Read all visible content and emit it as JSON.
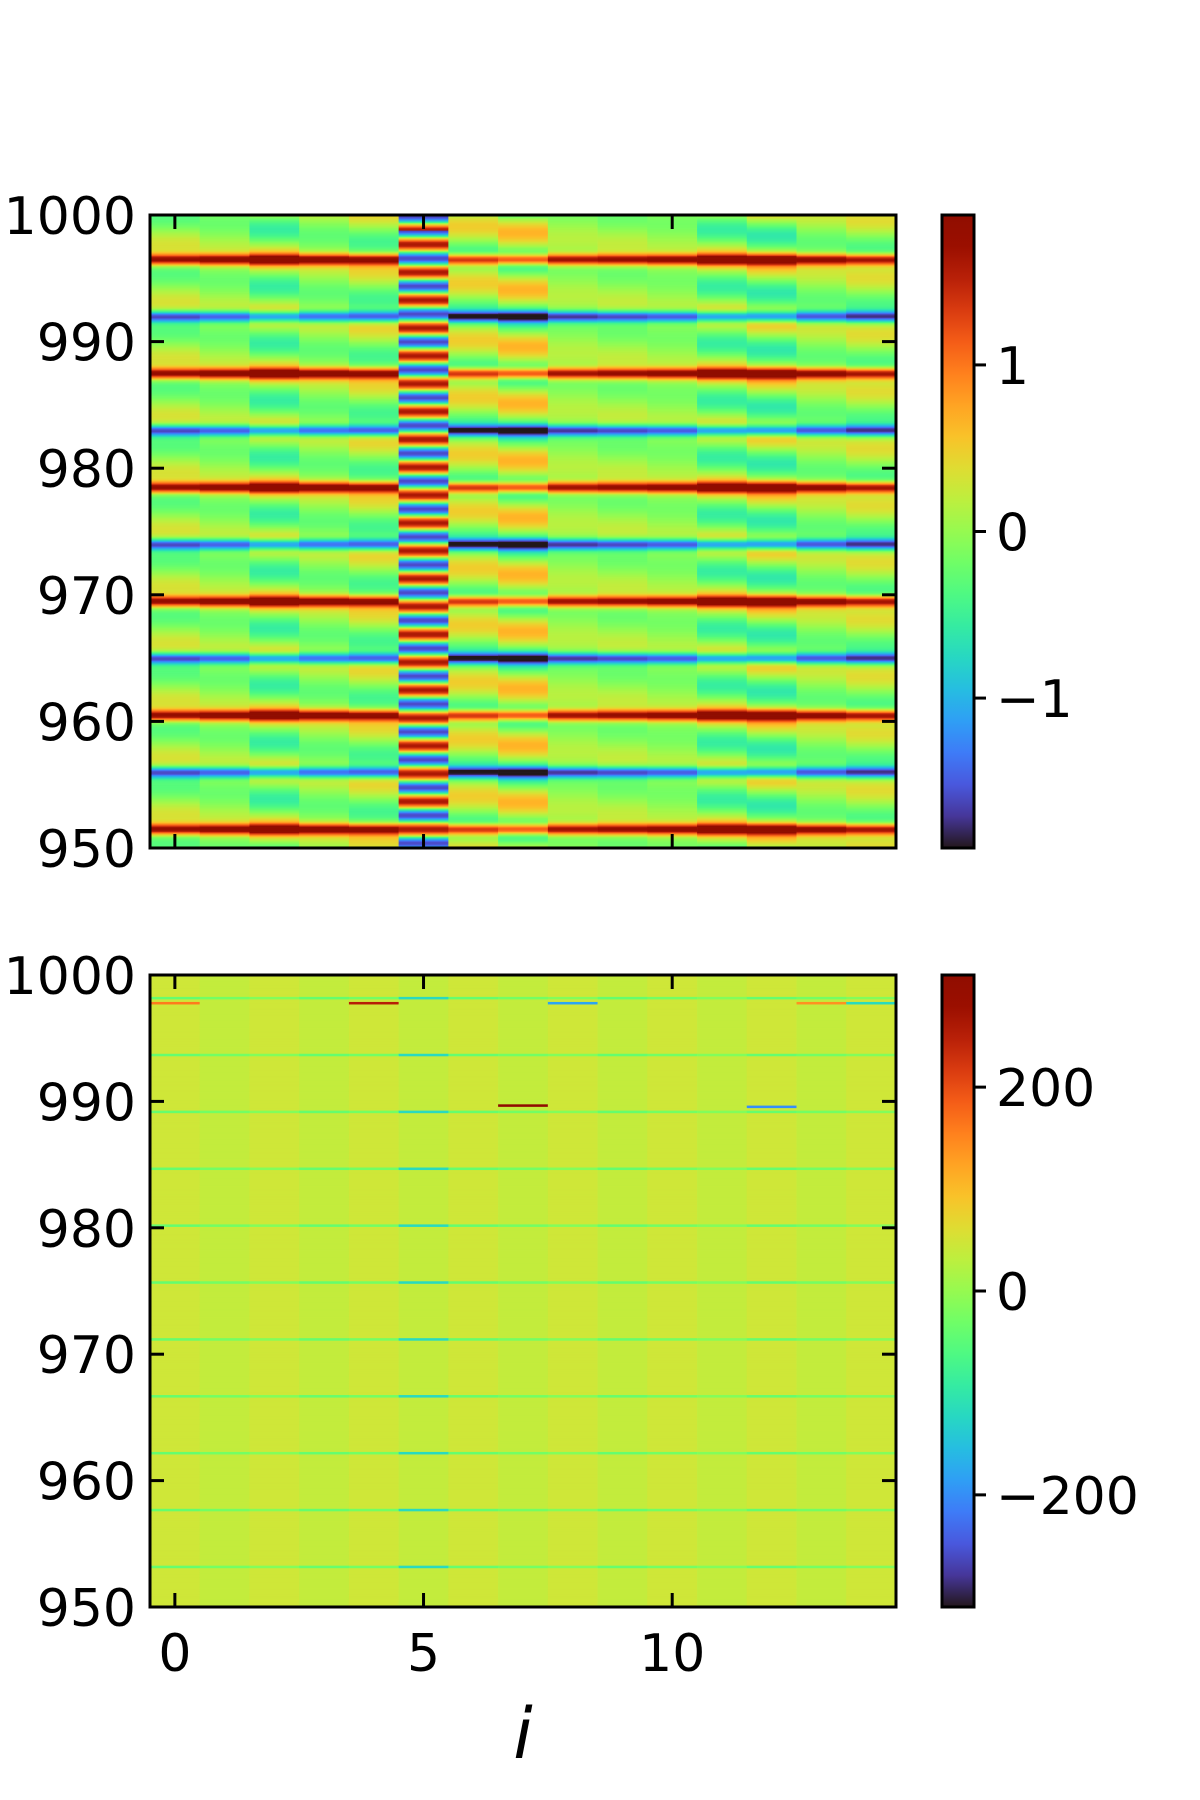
{
  "chart_data": [
    {
      "type": "heatmap",
      "panel": "top",
      "xlabel": "",
      "ylabel": "",
      "x_range": [
        -0.5,
        14.5
      ],
      "ylim": [
        950,
        1000
      ],
      "x_ticks": [
        0,
        5,
        10
      ],
      "x_tick_labels_shown": false,
      "y_ticks": [
        950,
        960,
        970,
        980,
        990,
        1000
      ],
      "y_tick_labels": [
        "950",
        "960",
        "970",
        "980",
        "990",
        "1000"
      ],
      "colormap": "turbo",
      "colorbar": {
        "min": -1.9,
        "max": 1.9,
        "ticks": [
          -1,
          0,
          1
        ],
        "tick_labels": [
          "−1",
          "0",
          "1"
        ]
      },
      "pattern": {
        "description_values": "columns i=0..14 show periodic rows; strong rows alternate +1.8 / -1.6 with period ~9 (y); column 5 oscillates with period ~2 (y)",
        "strong_row_period": 9.0,
        "strong_row_phase": 951.5,
        "strong_amplitude": 1.8,
        "weak_amplitude": 0.55,
        "column5_period": 2.2,
        "column5_amplitude": 1.6,
        "column_weights": [
          0.6,
          0.4,
          1.0,
          0.5,
          0.8,
          0.0,
          0.9,
          1.2,
          0.3,
          0.4,
          0.3,
          1.0,
          1.1,
          0.5,
          0.7
        ]
      }
    },
    {
      "type": "heatmap",
      "panel": "bottom",
      "xlabel": "i",
      "ylabel": "",
      "x_range": [
        -0.5,
        14.5
      ],
      "ylim": [
        950,
        1000
      ],
      "x_ticks": [
        0,
        5,
        10
      ],
      "x_tick_labels": [
        "0",
        "5",
        "10"
      ],
      "y_ticks": [
        950,
        960,
        970,
        980,
        990,
        1000
      ],
      "y_tick_labels": [
        "950",
        "960",
        "970",
        "980",
        "990",
        "1000"
      ],
      "colormap": "turbo",
      "colorbar": {
        "min": -310,
        "max": 310,
        "ticks": [
          -200,
          0,
          200
        ],
        "tick_labels": [
          "−200",
          "0",
          "200"
        ]
      },
      "pattern": {
        "background_value": 40,
        "line_period": 4.5,
        "line_phase": 953.2,
        "line_value": -40,
        "column5_line_period": 4.5,
        "column5_line_value": -120,
        "highlights": [
          {
            "i": 7,
            "y": 989.7,
            "value": 300
          },
          {
            "i": 12,
            "y": 989.6,
            "value": -200
          },
          {
            "i": 4,
            "y": 997.8,
            "value": 250
          },
          {
            "i": 0,
            "y": 997.8,
            "value": 160
          },
          {
            "i": 13,
            "y": 997.8,
            "value": 140
          },
          {
            "i": 8,
            "y": 997.8,
            "value": -180
          },
          {
            "i": 14,
            "y": 997.8,
            "value": -120
          }
        ]
      }
    }
  ]
}
